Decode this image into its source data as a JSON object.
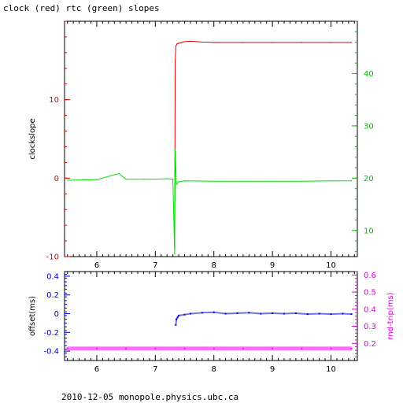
{
  "title": "clock (red) rtc (green) slopes",
  "footer": "2010-12-05  monopole.physics.ubc.ca",
  "colors": {
    "clock": "#e00000",
    "rtc": "#00e000",
    "offset": "#0000d0",
    "rndtrip": "#ff00ff",
    "axis_black": "#000000",
    "axis_red": "#d00000",
    "axis_green": "#00c000",
    "axis_blue": "#0000c0",
    "axis_magenta": "#e000e0"
  },
  "chart_data": [
    {
      "type": "line",
      "title": "clock (red) rtc (green) slopes",
      "xlabel": "",
      "ylabel": "clockslope",
      "ylabel_right": "",
      "xlim": [
        5.45,
        10.45
      ],
      "ylim": [
        -10,
        20
      ],
      "ylim_right": [
        5,
        50
      ],
      "x_ticks": [
        6,
        7,
        8,
        9,
        10
      ],
      "y_ticks_left": [
        -10,
        0,
        10
      ],
      "y_ticks_right": [
        10,
        20,
        30,
        40
      ],
      "grid": false,
      "series": [
        {
          "name": "clock",
          "axis": "left",
          "x": [
            7.33,
            7.34,
            7.35,
            7.37,
            7.4,
            7.45,
            7.5,
            7.6,
            7.7,
            7.8,
            8.0,
            8.5,
            9.0,
            9.5,
            10.0,
            10.35
          ],
          "y": [
            -9,
            15.0,
            16.8,
            17.1,
            17.2,
            17.3,
            17.4,
            17.45,
            17.4,
            17.35,
            17.3,
            17.3,
            17.3,
            17.3,
            17.3,
            17.3
          ]
        },
        {
          "name": "rtc",
          "axis": "right",
          "x": [
            5.5,
            6.0,
            6.38,
            6.5,
            6.8,
            7.0,
            7.2,
            7.3,
            7.33,
            7.34,
            7.36,
            7.4,
            7.5,
            8.0,
            8.5,
            9.0,
            9.5,
            10.0,
            10.35
          ],
          "y": [
            19.6,
            19.7,
            20.9,
            19.8,
            19.8,
            19.8,
            19.9,
            19.8,
            5.5,
            25.5,
            18.8,
            19.3,
            19.5,
            19.4,
            19.4,
            19.4,
            19.4,
            19.5,
            19.5
          ]
        }
      ]
    },
    {
      "type": "scatter",
      "title": "",
      "xlabel": "",
      "ylabel": "offset(ms)",
      "ylabel_right": "rnd-trip(ms)",
      "xlim": [
        5.45,
        10.45
      ],
      "ylim": [
        -0.5,
        0.45
      ],
      "ylim_right": [
        0.1,
        0.62
      ],
      "x_ticks": [
        6,
        7,
        8,
        9,
        10
      ],
      "y_ticks_left": [
        -0.4,
        -0.2,
        0,
        0.2,
        0.4
      ],
      "y_ticks_right": [
        0.2,
        0.3,
        0.4,
        0.5,
        0.6
      ],
      "grid": false,
      "series": [
        {
          "name": "offset",
          "axis": "left",
          "x": [
            7.35,
            7.36,
            7.38,
            7.4,
            7.5,
            7.6,
            7.8,
            8.0,
            8.2,
            8.4,
            8.6,
            8.8,
            9.0,
            9.2,
            9.4,
            9.6,
            9.8,
            10.0,
            10.2,
            10.35
          ],
          "y": [
            -0.12,
            -0.06,
            -0.04,
            -0.02,
            -0.01,
            0.0,
            0.01,
            0.015,
            0.0,
            0.005,
            0.01,
            0.0,
            0.005,
            0.0,
            0.005,
            -0.005,
            0.0,
            -0.005,
            0.0,
            -0.005
          ]
        },
        {
          "name": "rndtrip",
          "axis": "right",
          "x": [
            5.5,
            6.0,
            6.5,
            7.0,
            7.5,
            8.0,
            8.5,
            9.0,
            9.5,
            10.0,
            10.35
          ],
          "y": [
            0.17,
            0.17,
            0.17,
            0.17,
            0.17,
            0.17,
            0.17,
            0.17,
            0.17,
            0.17,
            0.17
          ]
        }
      ]
    }
  ]
}
